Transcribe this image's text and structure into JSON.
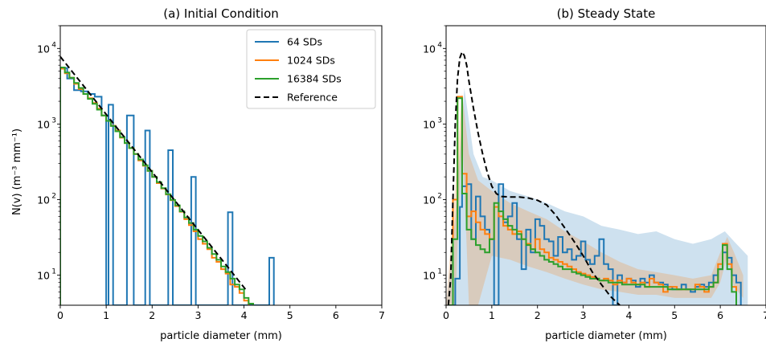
{
  "chart_data": [
    {
      "type": "line",
      "title": "(a) Initial Condition",
      "xlabel": "particle diameter (mm)",
      "ylabel": "N(v) (m⁻³ mm⁻¹)",
      "xlim": [
        0,
        7
      ],
      "ylim": [
        4,
        20000
      ],
      "yscale": "log",
      "grid": false,
      "legend": "top-right",
      "xticks": [
        "0",
        "1",
        "2",
        "3",
        "4",
        "5",
        "6",
        "7"
      ],
      "yticks": [
        {
          "value": 10,
          "base": "10",
          "exp": "1"
        },
        {
          "value": 100,
          "base": "10",
          "exp": "2"
        },
        {
          "value": 1000,
          "base": "10",
          "exp": "3"
        },
        {
          "value": 10000,
          "base": "10",
          "exp": "4"
        }
      ],
      "series": [
        {
          "name": "64 SDs",
          "color": "#1f77b4",
          "style": "step",
          "edges": [
            0,
            0.15,
            0.3,
            0.45,
            0.6,
            0.75,
            0.9,
            1.0,
            1.05,
            1.15,
            1.3,
            1.45,
            1.6,
            1.75,
            1.85,
            1.95,
            2.25,
            2.35,
            2.45,
            2.75,
            2.85,
            2.95,
            3.55,
            3.65,
            3.75,
            4.45,
            4.55,
            4.65
          ],
          "values": [
            5500,
            4000,
            2800,
            2700,
            2500,
            2300,
            1300,
            4,
            1800,
            4,
            4,
            1300,
            4,
            4,
            820,
            4,
            4,
            450,
            4,
            4,
            200,
            4,
            4,
            68,
            4,
            4,
            17
          ]
        },
        {
          "name": "1024 SDs",
          "color": "#ff7f0e",
          "style": "step",
          "edges": [
            0,
            0.1,
            0.2,
            0.3,
            0.4,
            0.5,
            0.6,
            0.7,
            0.8,
            0.9,
            1.0,
            1.1,
            1.2,
            1.3,
            1.4,
            1.5,
            1.6,
            1.7,
            1.8,
            1.9,
            2.0,
            2.1,
            2.2,
            2.3,
            2.4,
            2.5,
            2.6,
            2.7,
            2.8,
            2.9,
            3.0,
            3.1,
            3.2,
            3.3,
            3.4,
            3.5,
            3.6,
            3.7,
            3.8,
            3.9,
            4.0,
            4.1
          ],
          "values": [
            5400,
            4700,
            4100,
            3400,
            2900,
            2500,
            2200,
            1900,
            1600,
            1300,
            1100,
            950,
            820,
            660,
            560,
            480,
            400,
            330,
            280,
            240,
            200,
            165,
            140,
            117,
            98,
            82,
            69,
            55,
            46,
            38,
            30,
            26,
            22,
            17,
            15,
            12,
            10.5,
            7.5,
            7,
            5.8,
            4.6
          ]
        },
        {
          "name": "16384 SDs",
          "color": "#2ca02c",
          "style": "step",
          "edges": [
            0,
            0.1,
            0.2,
            0.3,
            0.4,
            0.5,
            0.6,
            0.7,
            0.8,
            0.9,
            1.0,
            1.1,
            1.2,
            1.3,
            1.4,
            1.5,
            1.6,
            1.7,
            1.8,
            1.9,
            2.0,
            2.1,
            2.2,
            2.3,
            2.4,
            2.5,
            2.6,
            2.7,
            2.8,
            2.9,
            3.0,
            3.1,
            3.2,
            3.3,
            3.4,
            3.5,
            3.6,
            3.7,
            3.8,
            3.9,
            4.0,
            4.1,
            4.2
          ],
          "values": [
            5600,
            4800,
            4100,
            3500,
            3000,
            2500,
            2150,
            1850,
            1550,
            1300,
            1100,
            940,
            800,
            670,
            560,
            480,
            400,
            340,
            285,
            240,
            200,
            170,
            142,
            118,
            99,
            84,
            70,
            58,
            49,
            40,
            33,
            28,
            23,
            19,
            16,
            13,
            11,
            9,
            7.5,
            6.5,
            5,
            4.2
          ]
        },
        {
          "name": "Reference",
          "color": "#000000",
          "style": "dashed",
          "x": [
            0,
            4.05
          ],
          "values": [
            7800,
            6.3
          ]
        }
      ]
    },
    {
      "type": "line",
      "title": "(b) Steady State",
      "xlabel": "particle diameter (mm)",
      "ylabel": "",
      "xlim": [
        0,
        7
      ],
      "ylim": [
        4,
        20000
      ],
      "yscale": "log",
      "grid": false,
      "xticks": [
        "0",
        "1",
        "2",
        "3",
        "4",
        "5",
        "6",
        "7"
      ],
      "yticks": [
        {
          "value": 10,
          "base": "10",
          "exp": "1"
        },
        {
          "value": 100,
          "base": "10",
          "exp": "2"
        },
        {
          "value": 1000,
          "base": "10",
          "exp": "3"
        },
        {
          "value": 10000,
          "base": "10",
          "exp": "4"
        }
      ],
      "bands": [
        {
          "series": "64 SDs",
          "color": "#1f77b4",
          "x": [
            0,
            0.2,
            0.4,
            0.6,
            0.8,
            1.0,
            1.4,
            1.8,
            2.2,
            2.6,
            3.0,
            3.4,
            3.8,
            4.2,
            4.6,
            5.0,
            5.4,
            5.8,
            6.1,
            6.3,
            6.6
          ],
          "upper": [
            4,
            60,
            3000,
            400,
            200,
            180,
            130,
            110,
            90,
            70,
            60,
            45,
            40,
            35,
            38,
            30,
            26,
            30,
            38,
            28,
            18
          ],
          "lower": [
            4,
            4,
            4,
            4,
            4,
            4,
            4,
            4,
            4,
            4,
            4,
            4,
            4,
            4,
            4,
            4,
            4,
            4,
            4,
            4,
            4
          ]
        },
        {
          "series": "1024 SDs",
          "color": "#ff7f0e",
          "x": [
            0,
            0.2,
            0.35,
            0.5,
            0.7,
            1.0,
            1.4,
            1.8,
            2.2,
            2.6,
            3.0,
            3.4,
            3.8,
            4.2,
            4.6,
            5.0,
            5.4,
            5.8,
            6.0,
            6.15,
            6.3,
            6.5
          ],
          "upper": [
            4,
            150,
            2600,
            400,
            180,
            130,
            90,
            70,
            55,
            38,
            28,
            20,
            15,
            12,
            11,
            10,
            9,
            10,
            20,
            32,
            20,
            10
          ],
          "lower": [
            4,
            4,
            900,
            4,
            4,
            18,
            16,
            13,
            11,
            9,
            7.5,
            6.5,
            6,
            5.5,
            5.5,
            5,
            5,
            5,
            8,
            18,
            7,
            5
          ]
        }
      ],
      "series": [
        {
          "name": "64 SDs",
          "color": "#1f77b4",
          "style": "step",
          "edges": [
            0.05,
            0.15,
            0.2,
            0.3,
            0.35,
            0.45,
            0.55,
            0.65,
            0.75,
            0.85,
            0.95,
            1.05,
            1.15,
            1.25,
            1.35,
            1.45,
            1.55,
            1.65,
            1.75,
            1.85,
            1.95,
            2.05,
            2.15,
            2.25,
            2.35,
            2.45,
            2.55,
            2.65,
            2.75,
            2.85,
            2.95,
            3.05,
            3.15,
            3.25,
            3.35,
            3.45,
            3.55,
            3.65,
            3.75,
            3.85,
            3.95,
            4.05,
            4.15,
            4.25,
            4.35,
            4.45,
            4.55,
            4.65,
            4.75,
            4.85,
            4.95,
            5.05,
            5.15,
            5.25,
            5.35,
            5.45,
            5.55,
            5.65,
            5.75,
            5.85,
            5.95,
            6.05,
            6.15,
            6.25,
            6.35,
            6.45
          ],
          "values": [
            4,
            4,
            9,
            80,
            150,
            160,
            30,
            110,
            60,
            40,
            30,
            4,
            160,
            50,
            60,
            90,
            30,
            12,
            40,
            20,
            55,
            45,
            30,
            28,
            18,
            32,
            20,
            22,
            16,
            18,
            28,
            16,
            14,
            18,
            30,
            14,
            12,
            4,
            10,
            8,
            9,
            8.5,
            7,
            9,
            8,
            10,
            8,
            8,
            7.5,
            7,
            6.5,
            6.5,
            7.5,
            6.5,
            6,
            7,
            7.5,
            7,
            8,
            10,
            12,
            20,
            17,
            10,
            8
          ]
        },
        {
          "name": "1024 SDs",
          "color": "#ff7f0e",
          "style": "step",
          "edges": [
            0.05,
            0.15,
            0.25,
            0.35,
            0.45,
            0.55,
            0.65,
            0.75,
            0.85,
            0.95,
            1.05,
            1.15,
            1.25,
            1.35,
            1.45,
            1.55,
            1.65,
            1.75,
            1.85,
            1.95,
            2.05,
            2.15,
            2.25,
            2.35,
            2.45,
            2.55,
            2.65,
            2.75,
            2.85,
            2.95,
            3.05,
            3.15,
            3.25,
            3.35,
            3.45,
            3.55,
            3.65,
            3.75,
            3.85,
            3.95,
            4.05,
            4.15,
            4.25,
            4.35,
            4.45,
            4.55,
            4.65,
            4.75,
            4.85,
            4.95,
            5.05,
            5.15,
            5.25,
            5.35,
            5.45,
            5.55,
            5.65,
            5.75,
            5.85,
            5.95,
            6.05,
            6.15,
            6.25,
            6.35
          ],
          "values": [
            4,
            100,
            2300,
            220,
            60,
            70,
            50,
            40,
            35,
            30,
            80,
            60,
            45,
            40,
            35,
            38,
            30,
            26,
            22,
            30,
            22,
            20,
            17,
            16,
            15,
            14,
            13,
            12,
            11,
            10.5,
            10,
            9.5,
            9,
            8.5,
            9,
            8.5,
            7.5,
            8.5,
            8,
            9,
            8,
            7.5,
            8,
            7,
            9,
            8,
            7.5,
            6,
            7,
            7,
            6.5,
            6.5,
            6.5,
            6.5,
            7.5,
            7,
            6,
            7,
            8,
            14,
            26,
            14,
            7
          ]
        },
        {
          "name": "16384 SDs",
          "color": "#2ca02c",
          "style": "step",
          "edges": [
            0.05,
            0.15,
            0.25,
            0.35,
            0.45,
            0.55,
            0.65,
            0.75,
            0.85,
            0.95,
            1.05,
            1.15,
            1.25,
            1.35,
            1.45,
            1.55,
            1.65,
            1.75,
            1.85,
            1.95,
            2.05,
            2.15,
            2.25,
            2.35,
            2.45,
            2.55,
            2.65,
            2.75,
            2.85,
            2.95,
            3.05,
            3.15,
            3.25,
            3.35,
            3.45,
            3.55,
            3.65,
            3.75,
            3.85,
            3.95,
            4.05,
            4.15,
            4.25,
            4.35,
            4.45,
            4.55,
            4.65,
            4.75,
            4.85,
            4.95,
            5.05,
            5.15,
            5.25,
            5.35,
            5.45,
            5.55,
            5.65,
            5.75,
            5.85,
            5.95,
            6.05,
            6.15,
            6.25,
            6.35
          ],
          "values": [
            4,
            30,
            2200,
            120,
            40,
            30,
            25,
            22,
            20,
            30,
            90,
            70,
            55,
            45,
            40,
            35,
            30,
            25,
            22,
            20,
            18,
            16,
            15,
            14,
            13,
            12,
            12,
            11,
            10.5,
            10,
            9.5,
            9,
            9,
            8.5,
            8.5,
            8,
            8,
            8,
            7.5,
            7.5,
            7.5,
            7.5,
            7.5,
            7,
            7,
            7,
            7,
            7,
            6.5,
            6.5,
            6.5,
            6.5,
            6.5,
            6.5,
            6.5,
            6.5,
            6.5,
            7,
            8,
            12,
            25,
            12,
            6
          ]
        },
        {
          "name": "Reference",
          "color": "#000000",
          "style": "dashed",
          "x": [
            0.05,
            0.1,
            0.15,
            0.2,
            0.25,
            0.3,
            0.35,
            0.4,
            0.45,
            0.5,
            0.6,
            0.7,
            0.8,
            0.9,
            1.0,
            1.1,
            1.2,
            1.4,
            1.6,
            1.8,
            2.0,
            2.2,
            2.4,
            2.6,
            2.8,
            3.0,
            3.2,
            3.4,
            3.6,
            3.8
          ],
          "values": [
            4,
            9,
            100,
            1000,
            4000,
            7500,
            9000,
            8000,
            6000,
            3700,
            1600,
            760,
            400,
            230,
            150,
            120,
            110,
            108,
            108,
            105,
            98,
            85,
            62,
            42,
            28,
            18,
            11,
            7.5,
            5.2,
            4
          ]
        }
      ]
    }
  ]
}
